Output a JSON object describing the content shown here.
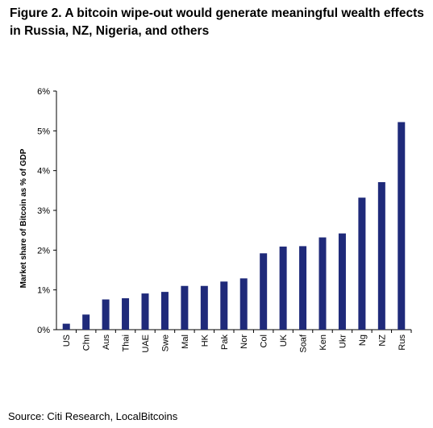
{
  "figure": {
    "title_line1": "Figure 2. A bitcoin wipe-out would generate meaningful wealth effects",
    "title_line2": "in Russia, NZ, Nigeria, and others",
    "source": "Source: Citi Research, LocalBitcoins"
  },
  "chart_data": {
    "type": "bar",
    "title": "",
    "xlabel": "",
    "ylabel": "Market share of Bitcoin as % of GDP",
    "categories": [
      "US",
      "Chn",
      "Aus",
      "Thai",
      "UAE",
      "Swe",
      "Mal",
      "HK",
      "Pak",
      "Nor",
      "Col",
      "UK",
      "Soaf",
      "Ken",
      "Ukr",
      "Ng",
      "NZ",
      "Rus"
    ],
    "values": [
      0.15,
      0.38,
      0.76,
      0.79,
      0.91,
      0.95,
      1.1,
      1.1,
      1.21,
      1.29,
      1.92,
      2.09,
      2.1,
      2.32,
      2.42,
      3.32,
      3.71,
      5.22
    ],
    "ylim": [
      0,
      6
    ],
    "yticks": [
      0,
      1,
      2,
      3,
      4,
      5,
      6
    ],
    "ytick_labels": [
      "0%",
      "1%",
      "2%",
      "3%",
      "4%",
      "5%",
      "6%"
    ],
    "bar_color": "#1f2a7a",
    "grid": false
  }
}
